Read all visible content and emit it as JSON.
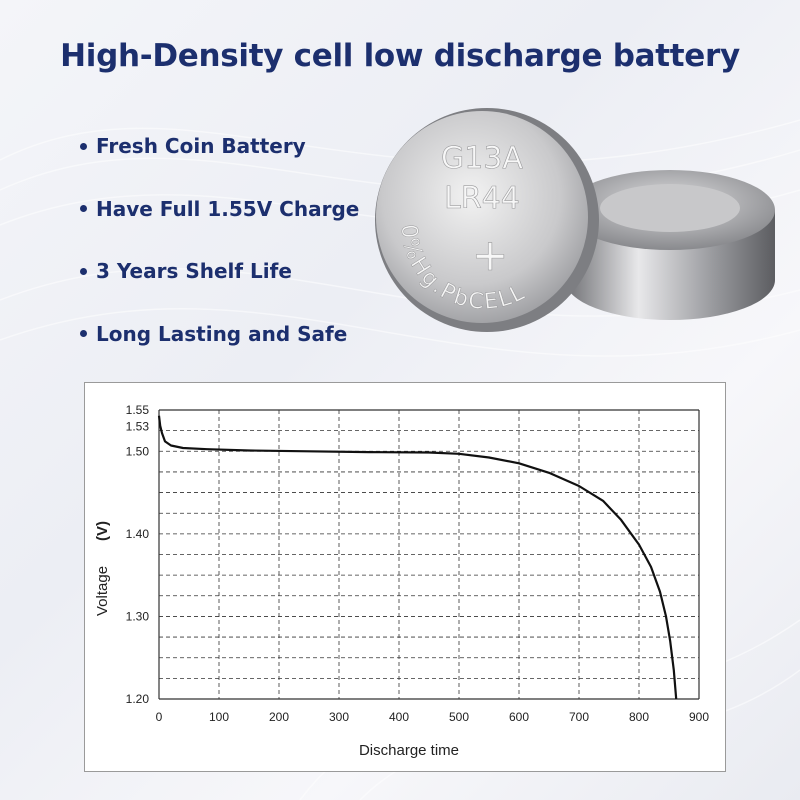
{
  "headline": "High-Density cell low discharge battery",
  "features": [
    "Fresh Coin Battery",
    "Have Full 1.55V Charge",
    "3 Years Shelf Life",
    "Long Lasting and Safe"
  ],
  "battery": {
    "model": "G13A",
    "code": "LR44",
    "rim_text": "0%Hg.PbCELL",
    "polarity": "+"
  },
  "colors": {
    "headline": "#1c2f6e",
    "curve": "#111111",
    "grid": "#333333"
  },
  "chart_data": {
    "type": "line",
    "title": "",
    "xlabel": "Discharge time",
    "ylabel": "Voltage",
    "ylabel_unit": "(V)",
    "xlim": [
      0,
      900
    ],
    "ylim": [
      1.2,
      1.55
    ],
    "x_ticks": [
      0,
      100,
      200,
      300,
      400,
      500,
      600,
      700,
      800,
      900
    ],
    "y_ticks": [
      1.2,
      1.3,
      1.4,
      1.5,
      1.53,
      1.55
    ],
    "y_tick_labels": [
      "1.20",
      "1.30",
      "1.40",
      "1.50",
      "1.53",
      "1.55"
    ],
    "grid": true,
    "series": [
      {
        "x": [
          0,
          2,
          5,
          10,
          20,
          40,
          80,
          150,
          250,
          350,
          450,
          500,
          550,
          600,
          650,
          700,
          740,
          770,
          800,
          820,
          835,
          845,
          852,
          858,
          862
        ],
        "y": [
          1.543,
          1.531,
          1.522,
          1.512,
          1.507,
          1.504,
          1.5025,
          1.501,
          1.5,
          1.499,
          1.4985,
          1.497,
          1.4925,
          1.4855,
          1.474,
          1.458,
          1.44,
          1.417,
          1.387,
          1.36,
          1.33,
          1.3,
          1.27,
          1.235,
          1.2
        ]
      }
    ]
  }
}
